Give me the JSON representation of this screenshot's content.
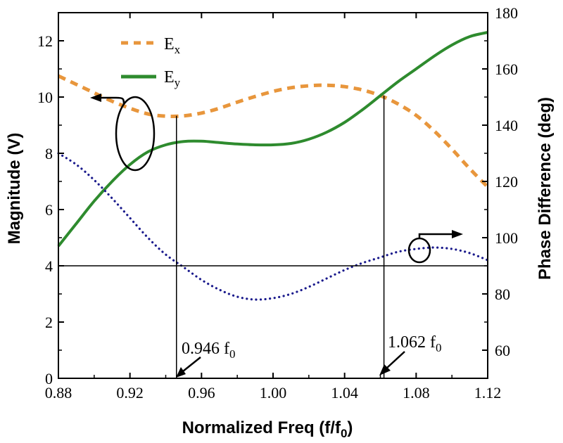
{
  "chart_data": {
    "type": "line",
    "title": "",
    "xlabel": "Normalized Freq (f/f",
    "xlabel_sub": "0",
    "xlabel_tail": ")",
    "ylabel": "Magnitude (V)",
    "y2label": "Phase Difference (deg)",
    "xlim": [
      0.88,
      1.12
    ],
    "ylim": [
      0,
      13
    ],
    "y2lim": [
      50,
      180
    ],
    "xticks": [
      "0.88",
      "0.92",
      "0.96",
      "1.00",
      "1.04",
      "1.08",
      "1.12"
    ],
    "yticks": [
      "0",
      "2",
      "4",
      "6",
      "8",
      "10",
      "12"
    ],
    "y2ticks": [
      "60",
      "80",
      "100",
      "120",
      "140",
      "160",
      "180"
    ],
    "legend_position": "top-left",
    "series": [
      {
        "name": "E",
        "name_sub": "x",
        "axis": "left",
        "style": "dashed",
        "color": "#E8963C",
        "x": [
          0.88,
          0.89,
          0.9,
          0.91,
          0.92,
          0.93,
          0.94,
          0.95,
          0.96,
          0.97,
          0.98,
          0.99,
          1.0,
          1.01,
          1.02,
          1.03,
          1.04,
          1.05,
          1.06,
          1.07,
          1.08,
          1.09,
          1.1,
          1.11,
          1.12
        ],
        "values": [
          10.75,
          10.45,
          10.15,
          9.85,
          9.6,
          9.4,
          9.32,
          9.33,
          9.43,
          9.6,
          9.82,
          10.02,
          10.2,
          10.33,
          10.4,
          10.42,
          10.37,
          10.25,
          10.05,
          9.75,
          9.35,
          8.8,
          8.15,
          7.45,
          6.8
        ]
      },
      {
        "name": "E",
        "name_sub": "y",
        "axis": "left",
        "style": "solid",
        "color": "#2E8B2E",
        "x": [
          0.88,
          0.89,
          0.9,
          0.91,
          0.92,
          0.93,
          0.94,
          0.95,
          0.96,
          0.97,
          0.98,
          0.99,
          1.0,
          1.01,
          1.02,
          1.03,
          1.04,
          1.05,
          1.06,
          1.07,
          1.08,
          1.09,
          1.1,
          1.11,
          1.12
        ],
        "values": [
          4.7,
          5.5,
          6.3,
          7.0,
          7.6,
          8.05,
          8.3,
          8.42,
          8.43,
          8.38,
          8.33,
          8.3,
          8.3,
          8.35,
          8.5,
          8.75,
          9.1,
          9.55,
          10.05,
          10.55,
          11.0,
          11.45,
          11.85,
          12.15,
          12.3
        ]
      },
      {
        "name": "Phase Difference",
        "axis": "right",
        "style": "dotted",
        "color": "#1A1A8C",
        "x": [
          0.88,
          0.89,
          0.9,
          0.91,
          0.92,
          0.93,
          0.94,
          0.95,
          0.96,
          0.97,
          0.98,
          0.99,
          1.0,
          1.01,
          1.02,
          1.03,
          1.04,
          1.05,
          1.06,
          1.07,
          1.08,
          1.09,
          1.1,
          1.11,
          1.12
        ],
        "values": [
          130,
          126,
          120.5,
          114,
          107,
          100,
          94,
          89.5,
          85,
          81.5,
          79,
          78,
          78.5,
          80,
          82.5,
          85.5,
          88.5,
          91,
          93,
          95,
          96,
          96.5,
          96,
          94.5,
          92
        ]
      }
    ],
    "reference_lines": {
      "horizontal_y": 4,
      "vertical_x": [
        0.946,
        1.062
      ]
    },
    "annotations": [
      {
        "text": "0.946 f",
        "sub": "0",
        "x": 0.946
      },
      {
        "text": "1.062 f",
        "sub": "0",
        "x": 1.062
      }
    ]
  }
}
